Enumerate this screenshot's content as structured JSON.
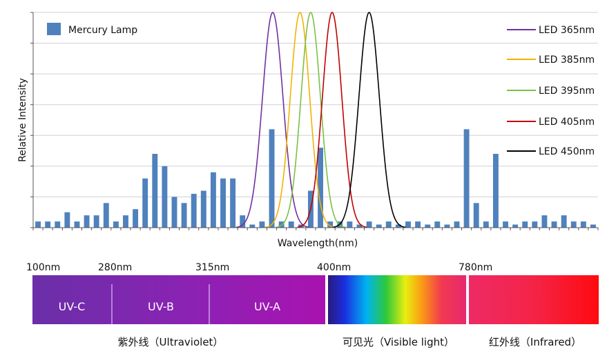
{
  "chart_data": {
    "type": "bar",
    "xlabel": "Wavelength(nm)",
    "ylabel": "Relative  Intensity",
    "ylim": [
      0,
      7
    ],
    "grid": true,
    "legend": "top-left and right",
    "series": [
      {
        "name": "Mercury Lamp",
        "kind": "bar",
        "color": "#4f81bd",
        "values": [
          0.2,
          0.2,
          0.2,
          0.5,
          0.2,
          0.4,
          0.4,
          0.8,
          0.2,
          0.4,
          0.6,
          1.6,
          2.4,
          2.0,
          1.0,
          0.8,
          1.1,
          1.2,
          1.8,
          1.6,
          1.6,
          0.4,
          0.1,
          0.2,
          3.2,
          0.2,
          0.2,
          0.1,
          1.2,
          2.6,
          0.2,
          0.2,
          0.2,
          0.1,
          0.2,
          0.1,
          0.2,
          0.1,
          0.2,
          0.2,
          0.1,
          0.2,
          0.1,
          0.2,
          3.2,
          0.8,
          0.2,
          2.4,
          0.2,
          0.1,
          0.2,
          0.2,
          0.4,
          0.2,
          0.4,
          0.2,
          0.2,
          0.1
        ]
      },
      {
        "name": "LED 365nm",
        "kind": "line",
        "color": "#7030a0",
        "peak_at": 24.1,
        "spread": 1.05,
        "peak": 7.0
      },
      {
        "name": "LED 385nm",
        "kind": "line",
        "color": "#f2b200",
        "peak_at": 26.9,
        "spread": 1.0,
        "peak": 7.0
      },
      {
        "name": "LED 395nm",
        "kind": "line",
        "color": "#7bc043",
        "peak_at": 28.0,
        "spread": 1.0,
        "peak": 7.0
      },
      {
        "name": "LED 405nm",
        "kind": "line",
        "color": "#c00000",
        "peak_at": 30.2,
        "spread": 1.0,
        "peak": 7.0
      },
      {
        "name": "LED 450nm",
        "kind": "line",
        "color": "#000000",
        "peak_at": 34.0,
        "spread": 1.05,
        "peak": 7.0
      }
    ]
  },
  "spectrum": {
    "tick_labels": [
      "100nm",
      "280nm",
      "315nm",
      "400nm",
      "780nm"
    ],
    "bands": [
      "UV-C",
      "UV-B",
      "UV-A"
    ],
    "captions": [
      "紫外线（Ultraviolet）",
      "可见光（Visible light）",
      "红外线（Infrared）"
    ]
  }
}
